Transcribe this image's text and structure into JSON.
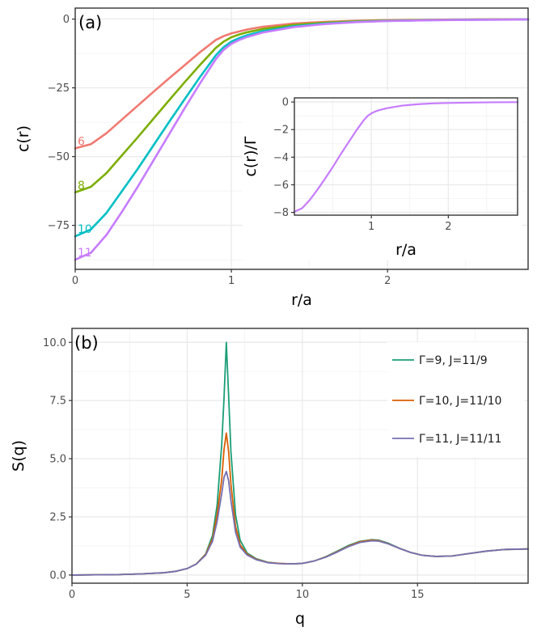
{
  "chart_data": [
    {
      "type": "line",
      "panel_label": "(a)",
      "xlabel": "r/a",
      "ylabel": "c(r)",
      "xlim": [
        0,
        2.9
      ],
      "ylim": [
        -91,
        4
      ],
      "x_ticks": [
        0,
        1,
        2
      ],
      "x_tick_labels": [
        "0",
        "1",
        "2"
      ],
      "y_ticks": [
        0,
        -25,
        -50,
        -75
      ],
      "y_tick_labels": [
        "0",
        "−25",
        "−50",
        "−75"
      ],
      "grid": true,
      "legend": "none",
      "series_note_labels": [
        "6",
        "8",
        "10",
        "11"
      ],
      "series": [
        {
          "name": "6",
          "color": "#f07971",
          "label_color": "#f07971",
          "x": [
            0,
            0.1,
            0.2,
            0.3,
            0.4,
            0.5,
            0.6,
            0.7,
            0.8,
            0.9,
            0.95,
            1.0,
            1.05,
            1.1,
            1.2,
            1.4,
            1.6,
            1.8,
            2.0,
            2.3,
            2.6,
            2.9
          ],
          "y": [
            -47,
            -45.5,
            -41.5,
            -36.5,
            -31.5,
            -26.5,
            -21.6,
            -16.8,
            -12.0,
            -7.6,
            -6.2,
            -5.2,
            -4.5,
            -3.8,
            -2.8,
            -1.6,
            -1.0,
            -0.6,
            -0.4,
            -0.2,
            -0.1,
            -0.05
          ]
        },
        {
          "name": "8",
          "color": "#7cae00",
          "label_color": "#7cae00",
          "x": [
            0,
            0.1,
            0.2,
            0.3,
            0.4,
            0.5,
            0.6,
            0.7,
            0.8,
            0.9,
            0.95,
            1.0,
            1.05,
            1.1,
            1.2,
            1.4,
            1.6,
            1.8,
            2.0,
            2.3,
            2.6,
            2.9
          ],
          "y": [
            -63,
            -61,
            -56,
            -49.5,
            -43,
            -36.3,
            -29.6,
            -23,
            -16.6,
            -10.5,
            -8.2,
            -6.6,
            -5.6,
            -4.8,
            -3.6,
            -2.1,
            -1.3,
            -0.8,
            -0.5,
            -0.3,
            -0.15,
            -0.1
          ]
        },
        {
          "name": "10",
          "color": "#00bfc4",
          "label_color": "#00bfc4",
          "x": [
            0,
            0.1,
            0.2,
            0.3,
            0.4,
            0.5,
            0.6,
            0.7,
            0.8,
            0.9,
            0.95,
            1.0,
            1.05,
            1.1,
            1.2,
            1.4,
            1.6,
            1.8,
            2.0,
            2.3,
            2.6,
            2.9
          ],
          "y": [
            -79,
            -76.5,
            -70.5,
            -62.5,
            -54.5,
            -46,
            -37.5,
            -29.2,
            -21,
            -13.2,
            -10.2,
            -8.2,
            -6.9,
            -5.9,
            -4.4,
            -2.6,
            -1.6,
            -1.0,
            -0.65,
            -0.35,
            -0.2,
            -0.15
          ]
        },
        {
          "name": "11",
          "color": "#c77cff",
          "label_color": "#c77cff",
          "x": [
            0,
            0.1,
            0.2,
            0.3,
            0.4,
            0.5,
            0.6,
            0.7,
            0.8,
            0.9,
            0.95,
            1.0,
            1.05,
            1.1,
            1.2,
            1.4,
            1.6,
            1.8,
            2.0,
            2.3,
            2.6,
            2.9
          ],
          "y": [
            -87.5,
            -85,
            -78.5,
            -70,
            -61,
            -51.5,
            -42,
            -32.5,
            -23.3,
            -14.6,
            -11.2,
            -9.0,
            -7.6,
            -6.5,
            -4.9,
            -2.9,
            -1.8,
            -1.1,
            -0.7,
            -0.4,
            -0.25,
            -0.15
          ]
        }
      ],
      "inset": {
        "type": "line",
        "xlabel": "r/a",
        "ylabel": "c(r)/Γ",
        "xlim": [
          0,
          2.9
        ],
        "ylim": [
          -8.2,
          0.3
        ],
        "x_ticks": [
          1,
          2
        ],
        "x_tick_labels": [
          "1",
          "2"
        ],
        "y_ticks": [
          0,
          -2,
          -4,
          -6,
          -8
        ],
        "y_tick_labels": [
          "0",
          "−2",
          "−4",
          "−6",
          "−8"
        ],
        "series": [
          {
            "name": "",
            "color": "#c77cff",
            "x": [
              0,
              0.1,
              0.2,
              0.3,
              0.4,
              0.5,
              0.6,
              0.7,
              0.8,
              0.9,
              0.95,
              1.0,
              1.05,
              1.1,
              1.2,
              1.4,
              1.6,
              1.8,
              2.0,
              2.3,
              2.6,
              2.9
            ],
            "y": [
              -7.95,
              -7.7,
              -7.1,
              -6.35,
              -5.55,
              -4.7,
              -3.8,
              -2.95,
              -2.1,
              -1.33,
              -1.02,
              -0.82,
              -0.69,
              -0.59,
              -0.45,
              -0.26,
              -0.16,
              -0.1,
              -0.07,
              -0.04,
              -0.02,
              -0.01
            ]
          }
        ]
      }
    },
    {
      "type": "line",
      "panel_label": "(b)",
      "xlabel": "q",
      "ylabel": "S(q)",
      "xlim": [
        0,
        19.8
      ],
      "ylim": [
        -0.35,
        10.6
      ],
      "x_ticks": [
        0,
        5,
        10,
        15
      ],
      "x_tick_labels": [
        "0",
        "5",
        "10",
        "15"
      ],
      "y_ticks": [
        0,
        2.5,
        5,
        7.5,
        10
      ],
      "y_tick_labels": [
        "0.0",
        "2.5",
        "5.0",
        "7.5",
        "10.0"
      ],
      "grid": true,
      "legend": "right",
      "series": [
        {
          "name": "Γ=9, J=11/9",
          "color": "#1b9e77",
          "x": [
            0,
            1,
            2,
            3,
            4,
            4.5,
            5,
            5.4,
            5.8,
            6.1,
            6.3,
            6.5,
            6.6,
            6.7,
            6.8,
            6.9,
            7.1,
            7.3,
            7.6,
            8,
            8.5,
            9,
            9.5,
            10,
            10.5,
            11,
            11.5,
            12,
            12.5,
            13,
            13.3,
            13.7,
            14.2,
            14.7,
            15.2,
            15.8,
            16.5,
            17.2,
            18,
            18.8,
            19.8
          ],
          "y": [
            0.0,
            0.01,
            0.02,
            0.05,
            0.1,
            0.16,
            0.28,
            0.48,
            0.9,
            1.7,
            3.0,
            5.6,
            7.6,
            10.0,
            7.7,
            5.3,
            2.6,
            1.5,
            0.95,
            0.7,
            0.55,
            0.5,
            0.48,
            0.5,
            0.6,
            0.78,
            1.02,
            1.27,
            1.45,
            1.52,
            1.5,
            1.38,
            1.16,
            0.97,
            0.85,
            0.8,
            0.82,
            0.92,
            1.03,
            1.1,
            1.12
          ]
        },
        {
          "name": "Γ=10, J=11/10",
          "color": "#d95f02",
          "x": [
            0,
            1,
            2,
            3,
            4,
            4.5,
            5,
            5.4,
            5.8,
            6.1,
            6.3,
            6.5,
            6.6,
            6.7,
            6.8,
            6.9,
            7.1,
            7.3,
            7.6,
            8,
            8.5,
            9,
            9.5,
            10,
            10.5,
            11,
            11.5,
            12,
            12.5,
            13,
            13.3,
            13.7,
            14.2,
            14.7,
            15.2,
            15.8,
            16.5,
            17.2,
            18,
            18.8,
            19.8
          ],
          "y": [
            0.0,
            0.01,
            0.02,
            0.05,
            0.1,
            0.16,
            0.28,
            0.48,
            0.88,
            1.55,
            2.6,
            4.1,
            5.4,
            6.1,
            5.3,
            3.9,
            2.1,
            1.3,
            0.9,
            0.68,
            0.54,
            0.5,
            0.48,
            0.5,
            0.6,
            0.77,
            1.0,
            1.24,
            1.43,
            1.5,
            1.48,
            1.36,
            1.15,
            0.97,
            0.85,
            0.8,
            0.82,
            0.92,
            1.03,
            1.1,
            1.12
          ]
        },
        {
          "name": "Γ=11, J=11/11",
          "color": "#7570b3",
          "x": [
            0,
            1,
            2,
            3,
            4,
            4.5,
            5,
            5.4,
            5.8,
            6.1,
            6.3,
            6.5,
            6.6,
            6.7,
            6.8,
            6.9,
            7.1,
            7.3,
            7.6,
            8,
            8.5,
            9,
            9.5,
            10,
            10.5,
            11,
            11.5,
            12,
            12.5,
            13,
            13.3,
            13.7,
            14.2,
            14.7,
            15.2,
            15.8,
            16.5,
            17.2,
            18,
            18.8,
            19.8
          ],
          "y": [
            0.0,
            0.01,
            0.02,
            0.05,
            0.1,
            0.16,
            0.28,
            0.47,
            0.85,
            1.45,
            2.3,
            3.5,
            4.2,
            4.45,
            4.05,
            3.2,
            1.85,
            1.2,
            0.86,
            0.66,
            0.53,
            0.49,
            0.48,
            0.5,
            0.6,
            0.76,
            0.98,
            1.22,
            1.4,
            1.47,
            1.46,
            1.35,
            1.15,
            0.97,
            0.85,
            0.8,
            0.82,
            0.92,
            1.03,
            1.1,
            1.12
          ]
        }
      ]
    }
  ]
}
